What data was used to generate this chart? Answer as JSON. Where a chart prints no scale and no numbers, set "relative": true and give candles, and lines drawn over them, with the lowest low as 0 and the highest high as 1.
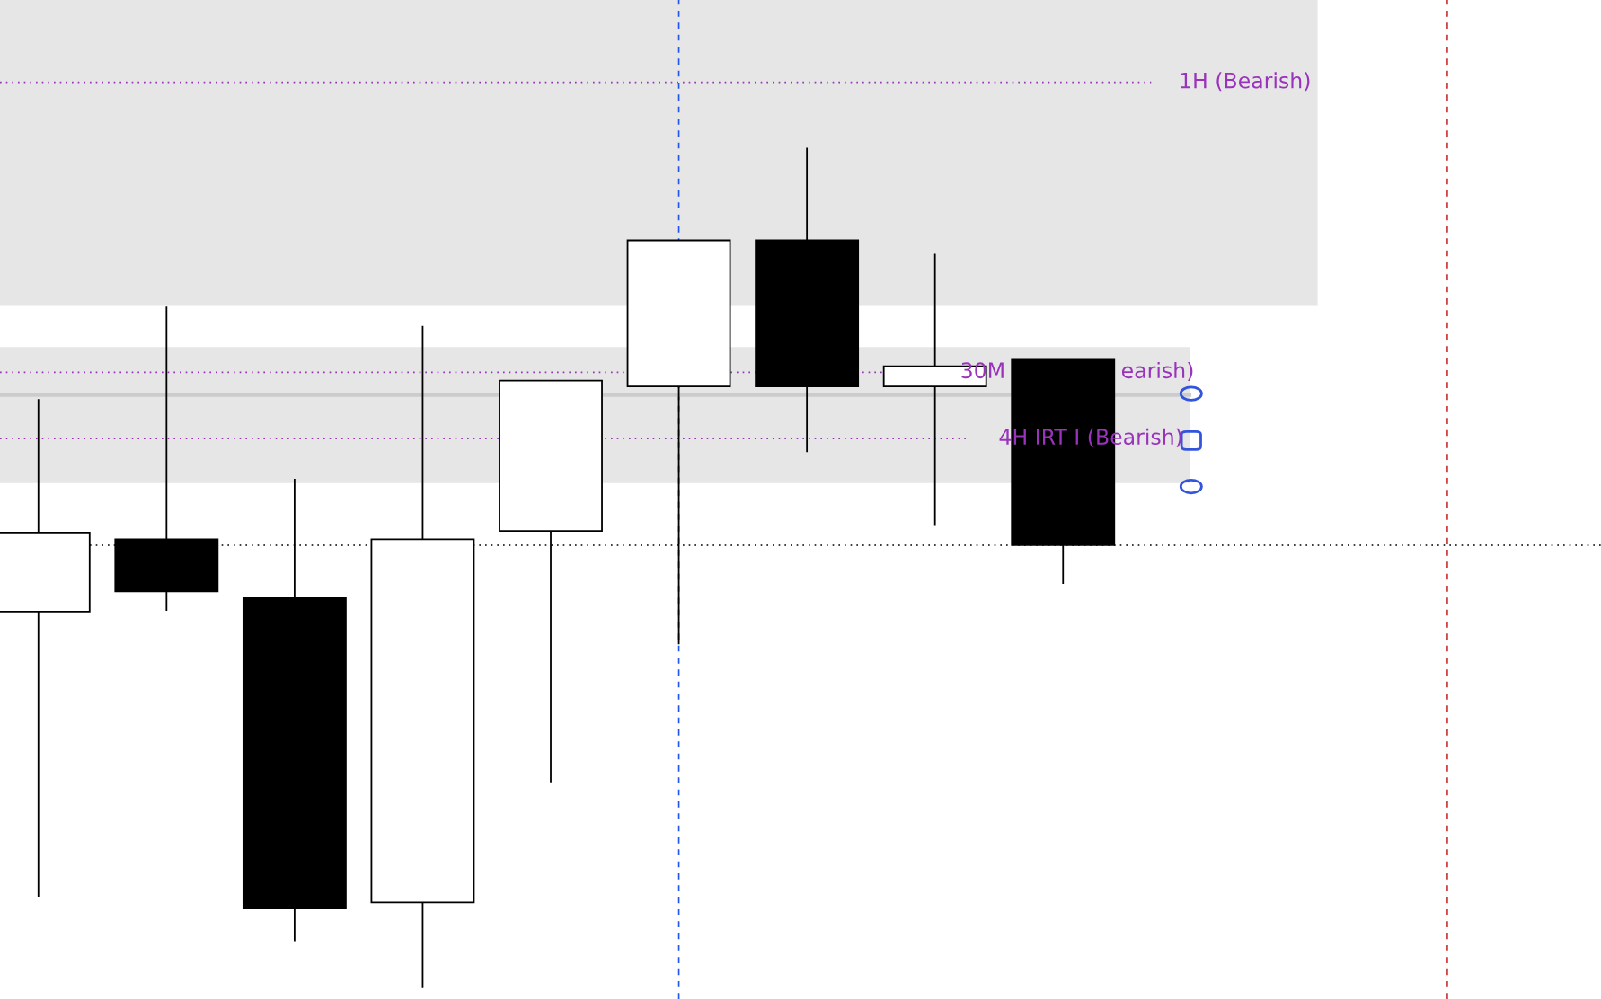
{
  "chart_data": {
    "type": "candlestick",
    "relative": true,
    "categories": [
      null,
      null,
      null,
      null,
      null,
      null,
      null,
      null,
      null
    ],
    "ohlc": [
      [
        0.448,
        0.701,
        0.109,
        0.542
      ],
      [
        0.534,
        0.811,
        0.449,
        0.472
      ],
      [
        0.464,
        0.606,
        0.056,
        0.095
      ],
      [
        0.102,
        0.788,
        0.0,
        0.534
      ],
      [
        0.544,
        0.723,
        0.244,
        0.723
      ],
      [
        0.716,
        0.89,
        0.409,
        0.89
      ],
      [
        0.89,
        1.0,
        0.638,
        0.716
      ],
      [
        0.716,
        0.874,
        0.551,
        0.74
      ],
      [
        0.748,
        0.748,
        0.481,
        0.527
      ]
    ],
    "bands": [
      {
        "axis": "y",
        "from": 0.812,
        "to": 1.18,
        "color": "#e6e6e6"
      },
      {
        "axis": "y",
        "from": 0.601,
        "to": 0.763,
        "color": "#e6e6e6"
      }
    ],
    "ref_lines": [
      {
        "axis": "y",
        "value": 1.078,
        "label": "1H (Bearish)",
        "color": "#9933bb",
        "line_style": "dotted"
      },
      {
        "axis": "y",
        "value": 0.733,
        "label": "30M",
        "color": "#9933bb",
        "line_style": "dotted"
      },
      {
        "axis": "y",
        "value": 0.654,
        "label": "4H IRT I (Bearish)",
        "color": "#9933bb",
        "line_style": "dotted"
      },
      {
        "axis": "y",
        "value": 0.706,
        "color": "#cccccc",
        "line_style": "solid"
      },
      {
        "axis": "y",
        "value": 0.527,
        "color": "#000000",
        "line_style": "dotted"
      }
    ],
    "annotations": [
      "earish)"
    ]
  }
}
